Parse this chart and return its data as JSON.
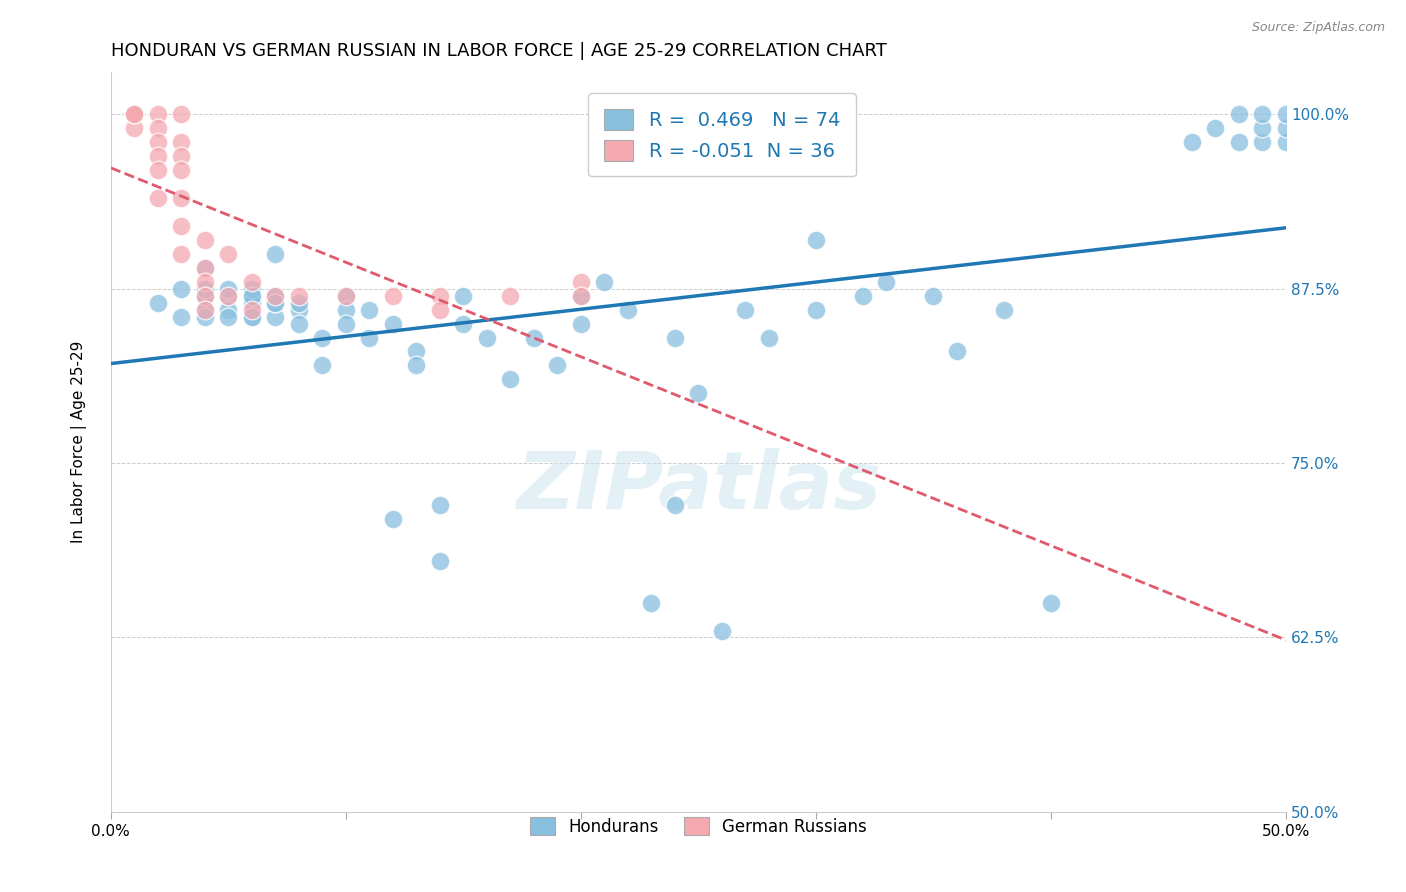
{
  "title": "HONDURAN VS GERMAN RUSSIAN IN LABOR FORCE | AGE 25-29 CORRELATION CHART",
  "source": "Source: ZipAtlas.com",
  "ylabel": "In Labor Force | Age 25-29",
  "xlim": [
    0.0,
    0.5
  ],
  "ylim": [
    0.5,
    1.03
  ],
  "yticks": [
    0.5,
    0.625,
    0.75,
    0.875,
    1.0
  ],
  "ytick_labels": [
    "50.0%",
    "62.5%",
    "75.0%",
    "87.5%",
    "100.0%"
  ],
  "xticks": [
    0.0,
    0.1,
    0.2,
    0.3,
    0.4,
    0.5
  ],
  "xtick_labels": [
    "0.0%",
    "",
    "",
    "",
    "",
    "50.0%"
  ],
  "blue_R": 0.469,
  "blue_N": 74,
  "pink_R": -0.051,
  "pink_N": 36,
  "blue_color": "#89bfdf",
  "pink_color": "#f4a8b0",
  "blue_line_color": "#1f77b4",
  "pink_line_color": "#e05a6e",
  "watermark": "ZIPatlas",
  "title_fontsize": 13,
  "axis_label_fontsize": 11,
  "tick_fontsize": 11,
  "blue_scatter_x": [
    0.02,
    0.03,
    0.03,
    0.04,
    0.04,
    0.04,
    0.04,
    0.04,
    0.05,
    0.05,
    0.05,
    0.05,
    0.06,
    0.06,
    0.06,
    0.06,
    0.06,
    0.06,
    0.07,
    0.07,
    0.07,
    0.07,
    0.07,
    0.08,
    0.08,
    0.08,
    0.09,
    0.09,
    0.1,
    0.1,
    0.1,
    0.11,
    0.11,
    0.12,
    0.12,
    0.13,
    0.13,
    0.14,
    0.14,
    0.15,
    0.15,
    0.16,
    0.17,
    0.18,
    0.19,
    0.2,
    0.2,
    0.21,
    0.22,
    0.23,
    0.24,
    0.24,
    0.25,
    0.26,
    0.27,
    0.28,
    0.3,
    0.3,
    0.32,
    0.33,
    0.35,
    0.36,
    0.38,
    0.4,
    0.46,
    0.47,
    0.48,
    0.48,
    0.49,
    0.49,
    0.49,
    0.5,
    0.5,
    0.5
  ],
  "blue_scatter_y": [
    0.865,
    0.875,
    0.855,
    0.89,
    0.87,
    0.875,
    0.86,
    0.855,
    0.87,
    0.875,
    0.86,
    0.855,
    0.87,
    0.865,
    0.875,
    0.855,
    0.87,
    0.855,
    0.87,
    0.855,
    0.865,
    0.9,
    0.865,
    0.86,
    0.85,
    0.865,
    0.84,
    0.82,
    0.87,
    0.86,
    0.85,
    0.86,
    0.84,
    0.85,
    0.71,
    0.83,
    0.82,
    0.68,
    0.72,
    0.85,
    0.87,
    0.84,
    0.81,
    0.84,
    0.82,
    0.85,
    0.87,
    0.88,
    0.86,
    0.65,
    0.84,
    0.72,
    0.8,
    0.63,
    0.86,
    0.84,
    0.86,
    0.91,
    0.87,
    0.88,
    0.87,
    0.83,
    0.86,
    0.65,
    0.98,
    0.99,
    0.98,
    1.0,
    0.98,
    0.99,
    1.0,
    0.98,
    0.99,
    1.0
  ],
  "pink_scatter_x": [
    0.01,
    0.01,
    0.01,
    0.01,
    0.01,
    0.02,
    0.02,
    0.02,
    0.02,
    0.02,
    0.02,
    0.03,
    0.03,
    0.03,
    0.03,
    0.03,
    0.03,
    0.03,
    0.04,
    0.04,
    0.04,
    0.04,
    0.04,
    0.05,
    0.05,
    0.06,
    0.06,
    0.07,
    0.08,
    0.1,
    0.12,
    0.14,
    0.17,
    0.2,
    0.14,
    0.2
  ],
  "pink_scatter_y": [
    1.0,
    1.0,
    0.99,
    1.0,
    1.0,
    1.0,
    0.99,
    0.98,
    0.97,
    0.96,
    0.94,
    1.0,
    0.98,
    0.97,
    0.96,
    0.94,
    0.92,
    0.9,
    0.91,
    0.89,
    0.88,
    0.87,
    0.86,
    0.9,
    0.87,
    0.88,
    0.86,
    0.87,
    0.87,
    0.87,
    0.87,
    0.87,
    0.87,
    0.88,
    0.86,
    0.87
  ],
  "right_tick_color": "#1f77b4"
}
